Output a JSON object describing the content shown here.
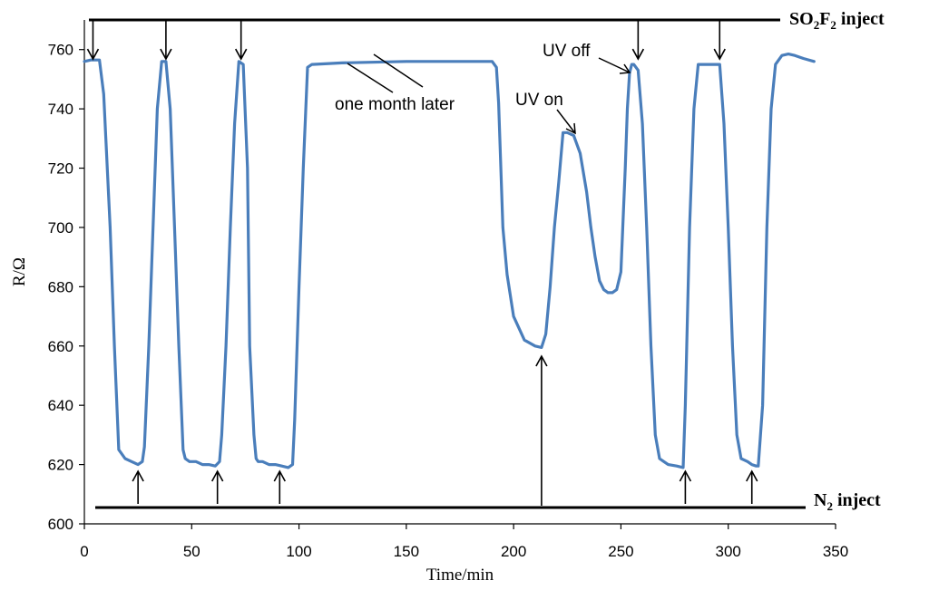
{
  "chart_data": {
    "type": "line",
    "xlabel": "Time/min",
    "ylabel": "R/Ω",
    "xlim": [
      0,
      350
    ],
    "ylim": [
      600,
      770
    ],
    "xticks": [
      "0",
      "50",
      "100",
      "150",
      "200",
      "250",
      "300",
      "350"
    ],
    "yticks": [
      "600",
      "620",
      "640",
      "660",
      "680",
      "700",
      "720",
      "740",
      "760"
    ],
    "grid": false,
    "line_color": "#4a7ebb",
    "series": [
      {
        "x": [
          0,
          3,
          7,
          9,
          12,
          14,
          16,
          19,
          22,
          25,
          27,
          28,
          30,
          32,
          34,
          36,
          38,
          40,
          42,
          44,
          46,
          47,
          49,
          52,
          55,
          58,
          61,
          63,
          64,
          66,
          68,
          70,
          72,
          74,
          76,
          77,
          79,
          80,
          81,
          83,
          86,
          89,
          92,
          95,
          97,
          98,
          100,
          102,
          104,
          106,
          120,
          150,
          180,
          190,
          192,
          193,
          195,
          197,
          200,
          205,
          210,
          213,
          215,
          217,
          219,
          221,
          223,
          225,
          228,
          231,
          234,
          236,
          238,
          240,
          242,
          244,
          246,
          248,
          250,
          252,
          253,
          254,
          255,
          256,
          258,
          260,
          262,
          264,
          266,
          268,
          270,
          272,
          276,
          279,
          280,
          282,
          284,
          286,
          288,
          290,
          292,
          294,
          296,
          298,
          300,
          302,
          304,
          306,
          309,
          311,
          313,
          314,
          316,
          318,
          320,
          322,
          325,
          328,
          331,
          335,
          340
        ],
        "y": [
          756,
          756.5,
          756.5,
          745,
          700,
          660,
          625,
          622,
          621,
          620,
          621,
          626,
          660,
          700,
          740,
          756,
          756,
          740,
          700,
          660,
          625,
          622,
          621,
          621,
          620,
          620,
          619.5,
          621,
          630,
          660,
          700,
          735,
          756,
          755,
          720,
          660,
          630,
          622,
          621,
          621,
          620,
          620,
          619.5,
          619,
          620,
          635,
          680,
          720,
          754,
          755,
          755.5,
          756,
          756,
          756,
          754,
          742,
          700,
          684,
          670,
          662,
          660,
          659.5,
          664,
          680,
          700,
          715,
          732,
          732,
          731,
          725,
          712,
          700,
          690,
          682,
          679,
          678,
          678,
          679,
          685,
          720,
          740,
          752,
          755,
          755,
          753,
          735,
          700,
          660,
          630,
          622,
          621,
          620,
          619.5,
          619,
          640,
          700,
          740,
          755,
          755,
          755,
          755,
          755,
          755,
          735,
          700,
          660,
          630,
          622,
          621,
          620,
          619.5,
          619.5,
          640,
          700,
          740,
          755,
          758,
          758.5,
          758,
          757,
          756
        ]
      }
    ],
    "annotations": {
      "so2f2_label": "SO",
      "so2f2_sub": "2",
      "so2f2_mid": "F",
      "so2f2_sub2": "2",
      "so2f2_tail": " inject",
      "n2_label": "N",
      "n2_sub": "2",
      "n2_tail": " inject",
      "month": "one month later",
      "uv_on": "UV on",
      "uv_off": "UV off"
    },
    "so2f2_arrows_x": [
      4,
      38,
      73,
      258,
      296
    ],
    "n2_arrows_x": [
      25,
      62,
      91,
      213,
      280,
      311
    ]
  }
}
